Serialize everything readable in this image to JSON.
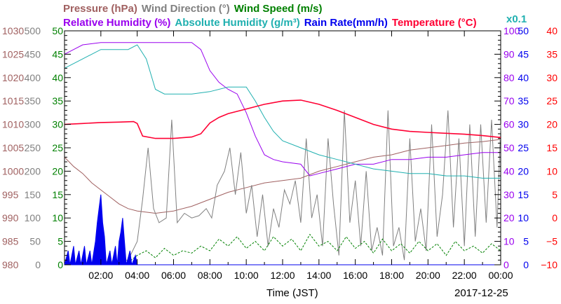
{
  "chart_data": {
    "type": "line",
    "date": "2017-12-25",
    "xlabel": "Time (JST)",
    "x_ticks": [
      "02:00",
      "04:00",
      "06:00",
      "08:00",
      "10:00",
      "12:00",
      "14:00",
      "16:00",
      "18:00",
      "20:00",
      "22:00",
      "00:00"
    ],
    "xlim_hours": [
      0,
      24
    ],
    "title_row1": [
      {
        "text": "Pressure (hPa)",
        "color": "#a06060"
      },
      {
        "text": "Wind Direction (°)",
        "color": "#808080"
      },
      {
        "text": "Wind Speed (m/s)",
        "color": "#008000"
      }
    ],
    "title_row2": [
      {
        "text": "Relative Humidity (%)",
        "color": "#9900ee"
      },
      {
        "text": "Absolute Humidity (g/m³)",
        "color": "#20b0b0"
      },
      {
        "text": "Rain Rate(mm/h)",
        "color": "#0000ee"
      },
      {
        "text": "Temperature (°C)",
        "color": "#ff0033"
      }
    ],
    "scale_note": {
      "text": "x0.1",
      "color": "#20b0b0"
    },
    "axes": {
      "pressure": {
        "ticks": [
          "980",
          "985",
          "990",
          "995",
          "1000",
          "1005",
          "1010",
          "1015",
          "1020",
          "1025",
          "1030"
        ],
        "range": [
          980,
          1030
        ],
        "color": "#a06060"
      },
      "wind_direction": {
        "ticks": [
          "0",
          "50",
          "100",
          "150",
          "200",
          "250",
          "300",
          "350",
          "400",
          "450",
          "500"
        ],
        "range": [
          0,
          500
        ],
        "color": "#808080"
      },
      "wind_speed": {
        "ticks": [
          "0",
          "5",
          "10",
          "15",
          "20",
          "25",
          "30",
          "35",
          "40",
          "45",
          "50"
        ],
        "range": [
          0,
          50
        ],
        "color": "#008000"
      },
      "humidity": {
        "ticks": [
          "0",
          "10",
          "20",
          "30",
          "40",
          "50",
          "60",
          "70",
          "80",
          "90",
          "100"
        ],
        "range": [
          0,
          100
        ],
        "color": "#9900ee"
      },
      "rain_rate": {
        "ticks": [
          "0",
          "5",
          "10",
          "15",
          "20",
          "25",
          "30",
          "35",
          "40",
          "45",
          "50"
        ],
        "range": [
          0,
          50
        ],
        "color": "#0000ee"
      },
      "temperature": {
        "ticks": [
          "−10",
          "−5",
          "0",
          "5",
          "10",
          "15",
          "20",
          "25",
          "30",
          "35",
          "40"
        ],
        "range": [
          -10,
          40
        ],
        "color": "#ff0000"
      }
    },
    "series": [
      {
        "key": "pressure",
        "axis": "pressure",
        "color": "#a06060",
        "points": [
          [
            0,
            1003
          ],
          [
            0.5,
            1001
          ],
          [
            1,
            999.5
          ],
          [
            1.5,
            997.5
          ],
          [
            2,
            996
          ],
          [
            2.5,
            994.5
          ],
          [
            3,
            993
          ],
          [
            3.5,
            992
          ],
          [
            4,
            991.5
          ],
          [
            5,
            991
          ],
          [
            6,
            991.5
          ],
          [
            7,
            992.5
          ],
          [
            8,
            994
          ],
          [
            9,
            995.5
          ],
          [
            10,
            996.5
          ],
          [
            11,
            997.5
          ],
          [
            12,
            998
          ],
          [
            13,
            998.5
          ],
          [
            14,
            1000
          ],
          [
            15,
            1001
          ],
          [
            16,
            1002
          ],
          [
            17,
            1003
          ],
          [
            18,
            1003.5
          ],
          [
            19,
            1004.5
          ],
          [
            20,
            1005
          ],
          [
            21,
            1005.5
          ],
          [
            22,
            1006
          ],
          [
            23,
            1006.3
          ],
          [
            24,
            1006.8
          ]
        ]
      },
      {
        "key": "wind_direction",
        "axis": "wind_direction",
        "color": "#808080",
        "points": [
          [
            0,
            0
          ],
          [
            3.5,
            10
          ],
          [
            4,
            50
          ],
          [
            4.3,
            140
          ],
          [
            4.6,
            250
          ],
          [
            4.9,
            120
          ],
          [
            5.2,
            90
          ],
          [
            5.6,
            100
          ],
          [
            5.9,
            310
          ],
          [
            6.2,
            90
          ],
          [
            6.6,
            110
          ],
          [
            7,
            100
          ],
          [
            7.4,
            105
          ],
          [
            7.8,
            120
          ],
          [
            8.1,
            100
          ],
          [
            8.4,
            170
          ],
          [
            8.8,
            200
          ],
          [
            9.1,
            250
          ],
          [
            9.4,
            150
          ],
          [
            9.7,
            240
          ],
          [
            10,
            110
          ],
          [
            10.3,
            170
          ],
          [
            10.6,
            60
          ],
          [
            10.9,
            150
          ],
          [
            11.2,
            40
          ],
          [
            11.5,
            120
          ],
          [
            11.8,
            80
          ],
          [
            12.1,
            160
          ],
          [
            12.4,
            130
          ],
          [
            12.7,
            180
          ],
          [
            13,
            90
          ],
          [
            13.3,
            270
          ],
          [
            13.6,
            100
          ],
          [
            13.9,
            150
          ],
          [
            14.2,
            40
          ],
          [
            14.5,
            270
          ],
          [
            14.8,
            130
          ],
          [
            15.1,
            20
          ],
          [
            15.4,
            330
          ],
          [
            15.7,
            90
          ],
          [
            16,
            180
          ],
          [
            16.3,
            40
          ],
          [
            16.6,
            200
          ],
          [
            16.9,
            30
          ],
          [
            17.2,
            80
          ],
          [
            17.5,
            20
          ],
          [
            17.8,
            330
          ],
          [
            18.1,
            40
          ],
          [
            18.4,
            80
          ],
          [
            18.7,
            10
          ],
          [
            19,
            270
          ],
          [
            19.3,
            50
          ],
          [
            19.6,
            120
          ],
          [
            19.9,
            30
          ],
          [
            20.2,
            300
          ],
          [
            20.5,
            60
          ],
          [
            20.8,
            150
          ],
          [
            21.1,
            330
          ],
          [
            21.4,
            80
          ],
          [
            21.7,
            270
          ],
          [
            22,
            40
          ],
          [
            22.3,
            300
          ],
          [
            22.6,
            60
          ],
          [
            22.9,
            300
          ],
          [
            23.2,
            90
          ],
          [
            23.5,
            310
          ],
          [
            23.8,
            80
          ],
          [
            24,
            300
          ]
        ]
      },
      {
        "key": "wind_speed",
        "axis": "wind_speed",
        "color": "#008000",
        "points": [
          [
            0,
            0
          ],
          [
            3.5,
            0.5
          ],
          [
            4,
            2
          ],
          [
            4.5,
            3
          ],
          [
            5,
            1.5
          ],
          [
            5.5,
            3.5
          ],
          [
            6,
            2
          ],
          [
            6.5,
            3
          ],
          [
            7,
            2.5
          ],
          [
            7.5,
            4
          ],
          [
            8,
            3
          ],
          [
            8.5,
            5.5
          ],
          [
            9,
            4
          ],
          [
            9.5,
            6
          ],
          [
            10,
            3.5
          ],
          [
            10.5,
            5
          ],
          [
            11,
            3
          ],
          [
            11.5,
            6
          ],
          [
            12,
            4
          ],
          [
            12.5,
            5.5
          ],
          [
            13,
            3
          ],
          [
            13.5,
            6.5
          ],
          [
            14,
            4
          ],
          [
            14.5,
            5
          ],
          [
            15,
            3
          ],
          [
            15.5,
            6
          ],
          [
            16,
            3.5
          ],
          [
            16.5,
            5
          ],
          [
            17,
            2.5
          ],
          [
            17.5,
            5.5
          ],
          [
            18,
            3
          ],
          [
            18.5,
            4.5
          ],
          [
            19,
            2.5
          ],
          [
            19.5,
            5
          ],
          [
            20,
            3
          ],
          [
            20.5,
            4.5
          ],
          [
            21,
            2
          ],
          [
            21.5,
            5
          ],
          [
            22,
            3
          ],
          [
            22.5,
            4
          ],
          [
            23,
            2.5
          ],
          [
            23.5,
            4.5
          ],
          [
            24,
            3
          ]
        ]
      },
      {
        "key": "relative_humidity",
        "axis": "humidity",
        "color": "#9900ee",
        "points": [
          [
            0,
            90
          ],
          [
            0.5,
            92
          ],
          [
            1,
            94
          ],
          [
            2,
            95
          ],
          [
            3,
            95
          ],
          [
            4,
            95
          ],
          [
            5,
            95
          ],
          [
            6,
            95
          ],
          [
            7,
            95
          ],
          [
            7.5,
            92
          ],
          [
            8,
            83
          ],
          [
            8.5,
            78
          ],
          [
            9,
            75
          ],
          [
            9.5,
            73
          ],
          [
            10,
            65
          ],
          [
            10.5,
            55
          ],
          [
            11,
            47
          ],
          [
            11.5,
            45
          ],
          [
            12,
            44
          ],
          [
            13,
            43
          ],
          [
            13.5,
            38
          ],
          [
            14,
            39
          ],
          [
            15,
            41
          ],
          [
            16,
            43
          ],
          [
            17,
            43
          ],
          [
            18,
            45
          ],
          [
            19,
            45
          ],
          [
            20,
            46
          ],
          [
            21,
            46
          ],
          [
            22,
            47
          ],
          [
            23,
            48
          ],
          [
            24,
            48
          ]
        ]
      },
      {
        "key": "absolute_humidity",
        "axis": "humidity",
        "color": "#20b0b0",
        "points": [
          [
            0,
            84
          ],
          [
            1,
            88
          ],
          [
            2,
            92
          ],
          [
            3,
            92
          ],
          [
            3.5,
            92
          ],
          [
            4,
            94
          ],
          [
            4.5,
            88
          ],
          [
            5,
            75
          ],
          [
            5.5,
            73
          ],
          [
            6,
            73
          ],
          [
            7,
            73
          ],
          [
            8,
            74
          ],
          [
            9,
            76
          ],
          [
            10,
            76
          ],
          [
            10.5,
            70
          ],
          [
            11,
            63
          ],
          [
            11.5,
            57
          ],
          [
            12,
            53
          ],
          [
            13,
            50
          ],
          [
            14,
            47
          ],
          [
            15,
            45
          ],
          [
            16,
            43
          ],
          [
            17,
            41
          ],
          [
            18,
            40
          ],
          [
            19,
            39
          ],
          [
            20,
            39
          ],
          [
            21,
            38
          ],
          [
            22,
            38
          ],
          [
            23,
            37
          ],
          [
            24,
            37
          ]
        ]
      },
      {
        "key": "temperature",
        "axis": "temperature",
        "color": "#ff0033",
        "points": [
          [
            0,
            20
          ],
          [
            1,
            20.2
          ],
          [
            2,
            20.4
          ],
          [
            3,
            20.5
          ],
          [
            3.8,
            20.6
          ],
          [
            4,
            20.2
          ],
          [
            4.3,
            17.5
          ],
          [
            5,
            17
          ],
          [
            6,
            17
          ],
          [
            7,
            17.3
          ],
          [
            7.5,
            18
          ],
          [
            8,
            20.3
          ],
          [
            8.5,
            21.5
          ],
          [
            9,
            22.3
          ],
          [
            10,
            23.3
          ],
          [
            11,
            24.3
          ],
          [
            12,
            25
          ],
          [
            13,
            25.2
          ],
          [
            14,
            24.3
          ],
          [
            15,
            23
          ],
          [
            16,
            21.5
          ],
          [
            17,
            20
          ],
          [
            18,
            19
          ],
          [
            19,
            18.5
          ],
          [
            20,
            18.3
          ],
          [
            21,
            18.1
          ],
          [
            22,
            17.9
          ],
          [
            23,
            17.6
          ],
          [
            24,
            17.2
          ]
        ]
      },
      {
        "key": "rain_rate",
        "axis": "rain_rate",
        "color": "#0000ee",
        "points": [
          [
            0,
            0
          ],
          [
            0.2,
            3
          ],
          [
            0.3,
            0
          ],
          [
            0.5,
            4
          ],
          [
            0.6,
            0
          ],
          [
            0.8,
            3
          ],
          [
            0.9,
            0
          ],
          [
            1.1,
            4
          ],
          [
            1.2,
            0
          ],
          [
            1.4,
            3
          ],
          [
            1.5,
            0
          ],
          [
            1.7,
            5
          ],
          [
            1.8,
            9
          ],
          [
            1.9,
            12
          ],
          [
            2,
            15
          ],
          [
            2.1,
            9
          ],
          [
            2.2,
            6
          ],
          [
            2.3,
            0
          ],
          [
            2.5,
            3
          ],
          [
            2.6,
            0
          ],
          [
            2.8,
            4
          ],
          [
            2.9,
            0
          ],
          [
            3,
            5
          ],
          [
            3.1,
            7
          ],
          [
            3.2,
            10
          ],
          [
            3.3,
            5
          ],
          [
            3.4,
            0
          ],
          [
            3.6,
            3
          ],
          [
            3.7,
            0
          ],
          [
            3.9,
            2
          ],
          [
            4,
            0
          ],
          [
            24,
            0
          ]
        ]
      }
    ]
  }
}
